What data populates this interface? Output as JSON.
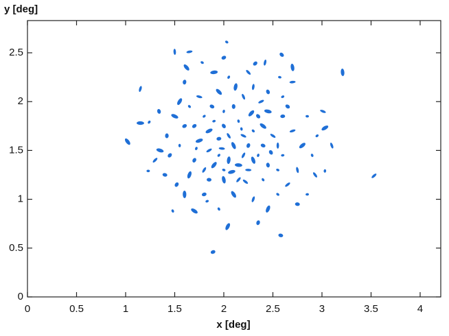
{
  "chart_data": {
    "type": "scatter",
    "x_label": "x [deg]",
    "y_label": "y [deg]",
    "color": "#1f6fd6",
    "xlim": [
      0,
      4.21
    ],
    "ylim": [
      0,
      2.83
    ],
    "xticks": [
      0,
      0.5,
      1,
      1.5,
      2,
      2.5,
      3,
      3.5,
      4
    ],
    "yticks": [
      0,
      0.5,
      1,
      1.5,
      2,
      2.5
    ],
    "grid": false,
    "x": [
      1.23,
      1.02,
      1.15,
      1.89,
      2.03,
      3.21,
      3.53,
      2.58,
      1.48,
      2.04,
      1.65,
      2.59,
      3.03,
      3.03,
      3.01,
      1.34,
      1.24,
      1.15,
      2.93,
      2.35,
      1.83,
      1.7,
      1.5,
      2.32,
      2.57,
      2.1,
      2.2,
      1.95,
      2.3,
      2.05,
      1.85,
      2.4,
      2.15,
      1.9,
      2.25,
      2.0,
      2.35,
      1.75,
      2.5,
      2.1,
      1.8,
      2.45,
      2.2,
      1.7,
      2.6,
      1.95,
      2.3,
      1.6,
      2.55,
      2.0,
      2.15,
      1.85,
      2.4,
      1.65,
      2.7,
      2.65,
      1.55,
      2.8,
      1.75,
      2.45,
      2.05,
      1.9,
      2.25,
      1.6,
      2.6,
      1.5,
      2.75,
      1.45,
      2.85,
      2.1,
      2.3,
      1.8,
      2.55,
      1.6,
      2.65,
      1.4,
      2.9,
      1.55,
      2.7,
      2.35,
      2.0,
      1.85,
      2.2,
      2.45,
      1.95,
      2.15,
      2.05,
      2.25,
      1.9,
      2.4,
      2.55,
      1.7,
      2.0,
      2.3,
      1.8,
      2.6,
      1.65,
      2.12,
      2.38,
      1.88,
      2.18,
      2.28,
      1.98,
      2.48,
      1.72,
      2.08,
      2.22,
      1.42,
      2.95,
      1.35,
      3.1,
      1.52,
      2.85,
      1.62,
      2.42,
      2.0,
      1.78,
      2.7,
      1.3,
      2.75,
      1.95,
      2.45
    ],
    "values": [
      1.29,
      1.59,
      2.13,
      0.46,
      2.61,
      2.3,
      1.24,
      0.63,
      0.88,
      0.72,
      2.51,
      2.48,
      1.29,
      1.73,
      1.9,
      1.9,
      1.79,
      1.78,
      1.25,
      0.76,
      0.98,
      0.88,
      2.51,
      2.39,
      2.25,
      1.55,
      1.45,
      1.62,
      1.7,
      1.4,
      1.5,
      1.55,
      1.8,
      1.35,
      1.3,
      1.75,
      1.45,
      1.6,
      1.65,
      1.95,
      1.85,
      1.9,
      2.05,
      1.4,
      1.45,
      2.1,
      2.15,
      1.75,
      1.3,
      1.2,
      1.2,
      1.2,
      1.2,
      1.25,
      1.7,
      1.95,
      1.55,
      1.55,
      2.05,
      2.1,
      2.25,
      2.3,
      2.3,
      2.2,
      2.05,
      1.85,
      1.3,
      1.45,
      1.85,
      1.05,
      1.0,
      1.05,
      1.05,
      1.05,
      1.15,
      1.25,
      1.45,
      2.0,
      2.2,
      1.85,
      1.9,
      1.7,
      1.65,
      1.35,
      1.45,
      1.35,
      1.65,
      1.55,
      1.8,
      1.75,
      1.55,
      1.75,
      1.3,
      1.4,
      1.3,
      1.85,
      1.95,
      2.15,
      2.0,
      1.95,
      1.72,
      1.88,
      1.52,
      1.48,
      1.52,
      1.28,
      1.18,
      1.65,
      1.65,
      1.5,
      1.55,
      1.15,
      1.05,
      2.35,
      2.4,
      2.45,
      2.4,
      2.35,
      1.4,
      0.95,
      0.9,
      0.9
    ]
  }
}
